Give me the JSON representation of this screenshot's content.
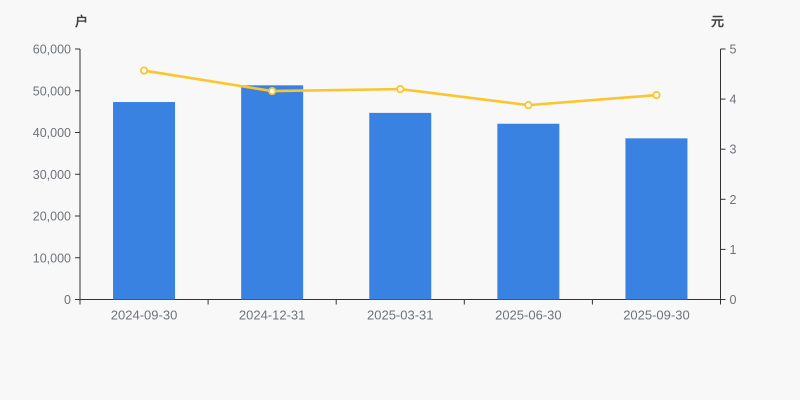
{
  "chart_data": {
    "type": "bar",
    "title": "",
    "categories": [
      "2024-09-30",
      "2024-12-31",
      "2025-03-31",
      "2025-06-30",
      "2025-09-30"
    ],
    "series": [
      {
        "name": "bar-series",
        "type": "bar",
        "axis": "left",
        "unit": "户",
        "values": [
          47300,
          51300,
          44700,
          42100,
          38600
        ],
        "color": "#3a82e2"
      },
      {
        "name": "line-series",
        "type": "line",
        "axis": "right",
        "unit": "元",
        "values": [
          4.57,
          4.16,
          4.2,
          3.88,
          4.08
        ],
        "color": "#fcc42d",
        "marker": "hollow-circle"
      }
    ],
    "left_axis": {
      "title": "户",
      "min": 0,
      "max": 60000,
      "tick_step": 10000,
      "tick_labels": [
        "0",
        "10,000",
        "20,000",
        "30,000",
        "40,000",
        "50,000",
        "60,000"
      ]
    },
    "right_axis": {
      "title": "元",
      "min": 0,
      "max": 5,
      "tick_step": 1,
      "tick_labels": [
        "0",
        "1",
        "2",
        "3",
        "4",
        "5"
      ]
    },
    "grid": false,
    "legend": false
  },
  "colors": {
    "background": "#f8f8f8",
    "bar": "#3a82e2",
    "line": "#fcc42d",
    "marker_fill": "#ffffff",
    "axis_line": "#333333",
    "tick_label": "#6e737a",
    "axis_title": "#404040"
  }
}
